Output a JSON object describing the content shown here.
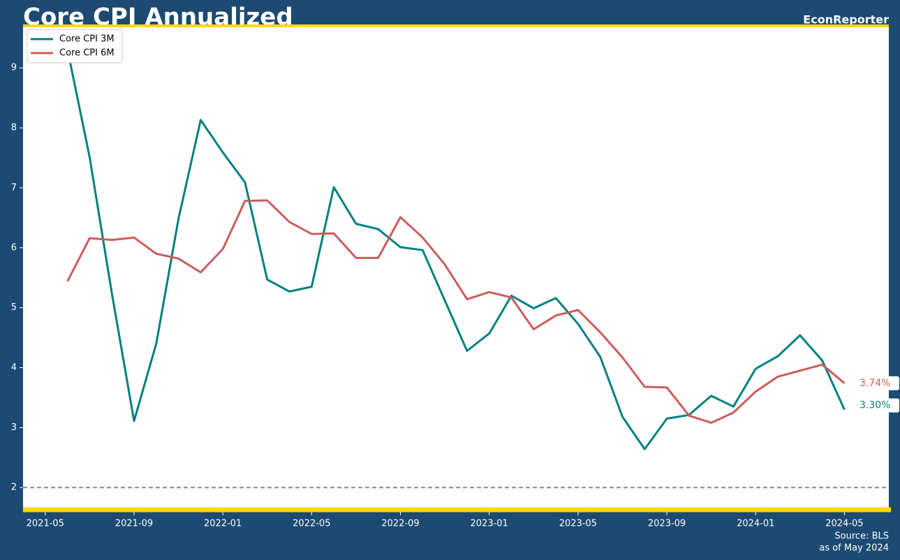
{
  "chart_data": {
    "type": "line",
    "title": "Core CPI Annualized",
    "brand": "EconReporter",
    "source": "Source: BLS",
    "as_of": "as of May 2024",
    "x": [
      "2021-06",
      "2021-07",
      "2021-08",
      "2021-09",
      "2021-10",
      "2021-11",
      "2021-12",
      "2022-01",
      "2022-02",
      "2022-03",
      "2022-04",
      "2022-05",
      "2022-06",
      "2022-07",
      "2022-08",
      "2022-09",
      "2022-10",
      "2022-11",
      "2022-12",
      "2023-01",
      "2023-02",
      "2023-03",
      "2023-04",
      "2023-05",
      "2023-06",
      "2023-07",
      "2023-08",
      "2023-09",
      "2023-10",
      "2023-11",
      "2023-12",
      "2024-01",
      "2024-02",
      "2024-03",
      "2024-04",
      "2024-05"
    ],
    "series": [
      {
        "name": "Core CPI 3M",
        "color": "#008080",
        "values": [
          9.31,
          7.51,
          5.24,
          3.11,
          4.4,
          6.48,
          8.13,
          7.59,
          7.09,
          5.47,
          5.27,
          5.35,
          7.01,
          6.4,
          6.31,
          6.01,
          5.96,
          5.12,
          4.28,
          4.57,
          5.2,
          4.99,
          5.16,
          4.73,
          4.18,
          3.18,
          2.64,
          3.15,
          3.21,
          3.53,
          3.35,
          3.98,
          4.19,
          4.54,
          4.12,
          3.3
        ],
        "value_labels": [
          null,
          null,
          null,
          null,
          null,
          null,
          null,
          null,
          null,
          null,
          null,
          null,
          null,
          null,
          null,
          null,
          null,
          null,
          null,
          null,
          null,
          null,
          null,
          null,
          null,
          null,
          null,
          null,
          null,
          null,
          null,
          null,
          null,
          null,
          null,
          "3.30%"
        ]
      },
      {
        "name": "Core CPI 6M",
        "color": "#cd5c5c",
        "values": [
          5.44,
          6.16,
          6.13,
          6.17,
          5.9,
          5.82,
          5.59,
          5.98,
          6.78,
          6.79,
          6.43,
          6.23,
          6.24,
          5.83,
          5.83,
          6.51,
          6.17,
          5.72,
          5.14,
          5.26,
          5.17,
          4.64,
          4.87,
          4.96,
          4.59,
          4.17,
          3.68,
          3.67,
          3.2,
          3.08,
          3.25,
          3.6,
          3.85,
          3.95,
          4.05,
          3.74
        ],
        "value_labels": [
          null,
          null,
          null,
          null,
          null,
          null,
          null,
          null,
          null,
          null,
          null,
          null,
          null,
          null,
          null,
          null,
          null,
          null,
          null,
          null,
          null,
          null,
          null,
          null,
          null,
          null,
          null,
          null,
          null,
          null,
          null,
          null,
          null,
          null,
          null,
          "3.74%"
        ]
      }
    ],
    "xlim": [
      "2021-04",
      "2024-07"
    ],
    "xticks": [
      "2021-05",
      "2021-09",
      "2022-01",
      "2022-05",
      "2022-09",
      "2023-01",
      "2023-05",
      "2023-09",
      "2024-01",
      "2024-05"
    ],
    "ylim": [
      1.63,
      9.69
    ],
    "yticks": [
      2,
      3,
      4,
      5,
      6,
      7,
      8,
      9
    ],
    "hline": 2,
    "legend": "upper-left"
  }
}
